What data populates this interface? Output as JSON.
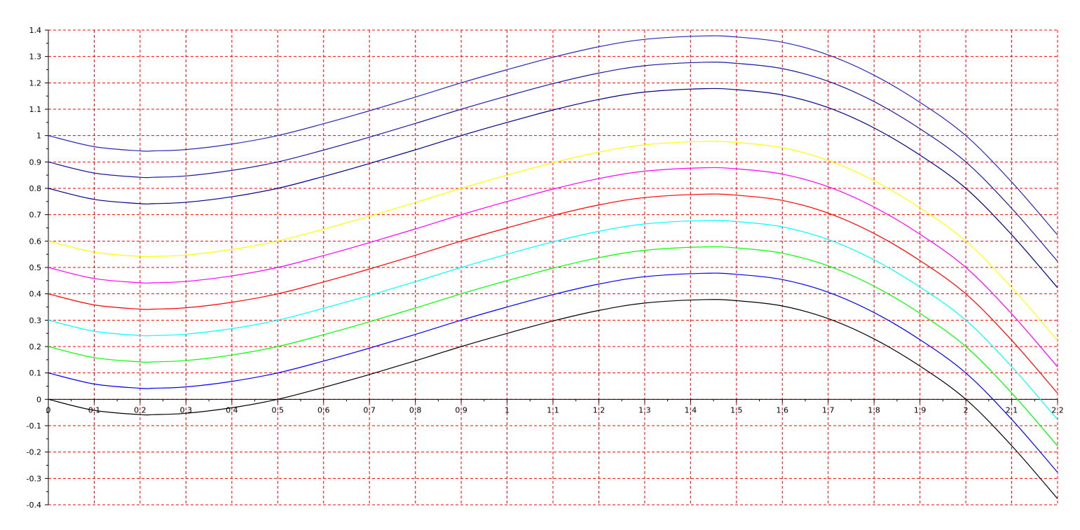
{
  "chart_data": {
    "type": "line",
    "xlim": [
      0,
      2.2
    ],
    "ylim": [
      -0.4,
      1.4
    ],
    "grid": true,
    "grid_color": "#ff0000",
    "axis_color": "#000000",
    "x_ticks": [
      0,
      0.1,
      0.2,
      0.3,
      0.4,
      0.5,
      0.6,
      0.7,
      0.8,
      0.9,
      1,
      1.1,
      1.2,
      1.3,
      1.4,
      1.5,
      1.6,
      1.7,
      1.8,
      1.9,
      2,
      2.1,
      2.2
    ],
    "x_tick_labels": [
      "0",
      "0.1",
      "0.2",
      "0.3",
      "0.4",
      "0.5",
      "0.6",
      "0.7",
      "0.8",
      "0.9",
      "1",
      "1.1",
      "1.2",
      "1.3",
      "1.4",
      "1.5",
      "1.6",
      "1.7",
      "1.8",
      "1.9",
      "2",
      "2.1",
      "2.2"
    ],
    "y_ticks": [
      -0.4,
      -0.3,
      -0.2,
      -0.1,
      0,
      0.1,
      0.2,
      0.3,
      0.4,
      0.5,
      0.6,
      0.7,
      0.8,
      0.9,
      1,
      1.1,
      1.2,
      1.3,
      1.4
    ],
    "y_tick_labels": [
      "-0.4",
      "-0.3",
      "-0.2",
      "-0.1",
      "0",
      "0.1",
      "0.2",
      "0.3",
      "0.4",
      "0.5",
      "0.6",
      "0.7",
      "0.8",
      "0.9",
      "1",
      "1.1",
      "1.2",
      "1.3",
      "1.4"
    ],
    "x": [
      0,
      0.1,
      0.2,
      0.23,
      0.3,
      0.4,
      0.5,
      0.6,
      0.7,
      0.8,
      0.9,
      1,
      1.1,
      1.2,
      1.3,
      1.43,
      1.5,
      1.6,
      1.7,
      1.8,
      1.9,
      2,
      2.1,
      2.2
    ],
    "series": [
      {
        "color": "#000000",
        "values": [
          0,
          -0.042,
          -0.058,
          -0.058,
          -0.053,
          -0.032,
          0,
          0.045,
          0.094,
          0.146,
          0.2,
          0.25,
          0.297,
          0.337,
          0.365,
          0.378,
          0.374,
          0.354,
          0.306,
          0.229,
          0.126,
          0,
          -0.176,
          -0.377
        ]
      },
      {
        "color": "#0000ff",
        "values": [
          0.1,
          0.058,
          0.042,
          0.042,
          0.047,
          0.068,
          0.1,
          0.145,
          0.194,
          0.246,
          0.3,
          0.35,
          0.397,
          0.437,
          0.465,
          0.478,
          0.474,
          0.454,
          0.406,
          0.329,
          0.226,
          0.1,
          -0.076,
          -0.277
        ]
      },
      {
        "color": "#00ff00",
        "values": [
          0.2,
          0.158,
          0.142,
          0.142,
          0.147,
          0.168,
          0.2,
          0.245,
          0.294,
          0.346,
          0.4,
          0.45,
          0.497,
          0.537,
          0.565,
          0.578,
          0.574,
          0.554,
          0.506,
          0.429,
          0.326,
          0.2,
          0.024,
          -0.177
        ]
      },
      {
        "color": "#00ffff",
        "values": [
          0.3,
          0.258,
          0.242,
          0.242,
          0.247,
          0.268,
          0.3,
          0.345,
          0.394,
          0.446,
          0.5,
          0.55,
          0.597,
          0.637,
          0.665,
          0.678,
          0.674,
          0.654,
          0.606,
          0.529,
          0.426,
          0.3,
          0.124,
          -0.077
        ]
      },
      {
        "color": "#ff0000",
        "values": [
          0.4,
          0.358,
          0.342,
          0.342,
          0.347,
          0.368,
          0.4,
          0.445,
          0.494,
          0.546,
          0.6,
          0.65,
          0.697,
          0.737,
          0.765,
          0.778,
          0.774,
          0.754,
          0.706,
          0.629,
          0.526,
          0.4,
          0.224,
          0.023
        ]
      },
      {
        "color": "#ff00ff",
        "values": [
          0.5,
          0.458,
          0.442,
          0.442,
          0.447,
          0.468,
          0.5,
          0.545,
          0.594,
          0.646,
          0.7,
          0.75,
          0.797,
          0.837,
          0.865,
          0.878,
          0.874,
          0.854,
          0.806,
          0.729,
          0.626,
          0.5,
          0.324,
          0.123
        ]
      },
      {
        "color": "#ffff00",
        "values": [
          0.6,
          0.558,
          0.542,
          0.542,
          0.547,
          0.568,
          0.6,
          0.645,
          0.694,
          0.746,
          0.8,
          0.85,
          0.897,
          0.937,
          0.965,
          0.978,
          0.974,
          0.954,
          0.906,
          0.829,
          0.726,
          0.6,
          0.424,
          0.223
        ]
      },
      {
        "color": "#00008b",
        "values": [
          0.8,
          0.758,
          0.742,
          0.742,
          0.747,
          0.768,
          0.8,
          0.845,
          0.894,
          0.946,
          1,
          1.05,
          1.097,
          1.137,
          1.165,
          1.178,
          1.174,
          1.154,
          1.106,
          1.029,
          0.926,
          0.8,
          0.624,
          0.423
        ]
      },
      {
        "color": "#1a1aa0",
        "values": [
          0.9,
          0.858,
          0.842,
          0.842,
          0.847,
          0.868,
          0.9,
          0.945,
          0.994,
          1.046,
          1.1,
          1.15,
          1.197,
          1.237,
          1.265,
          1.278,
          1.274,
          1.254,
          1.206,
          1.129,
          1.026,
          0.9,
          0.724,
          0.523
        ]
      },
      {
        "color": "#2a2ab8",
        "values": [
          1,
          0.958,
          0.942,
          0.942,
          0.947,
          0.968,
          1,
          1.045,
          1.094,
          1.146,
          1.2,
          1.25,
          1.297,
          1.337,
          1.365,
          1.378,
          1.374,
          1.354,
          1.306,
          1.229,
          1.126,
          1,
          0.824,
          0.623
        ]
      }
    ]
  }
}
